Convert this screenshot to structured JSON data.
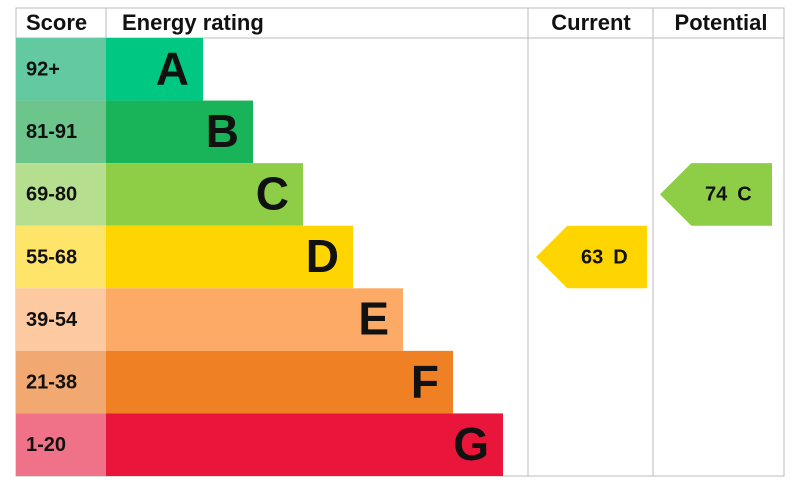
{
  "chart_data": {
    "type": "epc",
    "headers": {
      "score": "Score",
      "rating": "Energy rating",
      "current": "Current",
      "potential": "Potential"
    },
    "bands": [
      {
        "score": "92+",
        "rating": "A",
        "color": "#00c781",
        "score_color": "#62c9a0"
      },
      {
        "score": "81-91",
        "rating": "B",
        "color": "#19b459",
        "score_color": "#6cc58a"
      },
      {
        "score": "69-80",
        "rating": "C",
        "color": "#8dce46",
        "score_color": "#b5df8f"
      },
      {
        "score": "55-68",
        "rating": "D",
        "color": "#ffd500",
        "score_color": "#ffe46a"
      },
      {
        "score": "39-54",
        "rating": "E",
        "color": "#fcaa65",
        "score_color": "#fdc9a0"
      },
      {
        "score": "21-38",
        "rating": "F",
        "color": "#ef8023",
        "score_color": "#f2a871"
      },
      {
        "score": "1-20",
        "rating": "G",
        "color": "#e9153b",
        "score_color": "#ef7289"
      }
    ],
    "current": {
      "value": 63,
      "rating": "D"
    },
    "potential": {
      "value": 74,
      "rating": "C"
    }
  }
}
